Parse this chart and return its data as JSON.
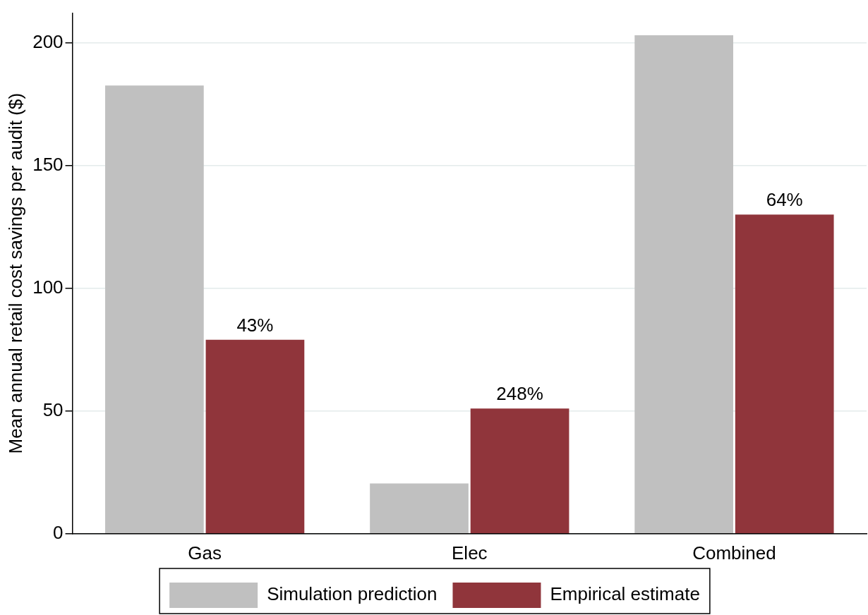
{
  "chart_data": {
    "type": "bar",
    "ylabel": "Mean annual retail cost savings per audit ($)",
    "categories": [
      "Gas",
      "Elec",
      "Combined"
    ],
    "series": [
      {
        "name": "Simulation prediction",
        "color": "#c0c0c0",
        "values": [
          182.5,
          20.5,
          203
        ]
      },
      {
        "name": "Empirical estimate",
        "color": "#90353b",
        "values": [
          79,
          51,
          130
        ]
      }
    ],
    "annotations": [
      {
        "text": "43%",
        "x": "Gas",
        "y": 79
      },
      {
        "text": "248%",
        "x": "Elec",
        "y": 51
      },
      {
        "text": "64%",
        "x": "Combined",
        "y": 130
      }
    ],
    "ylim": [
      0,
      212
    ],
    "yticks": [
      0,
      50,
      100,
      150,
      200
    ],
    "grid": "y",
    "legend": "bottom"
  }
}
